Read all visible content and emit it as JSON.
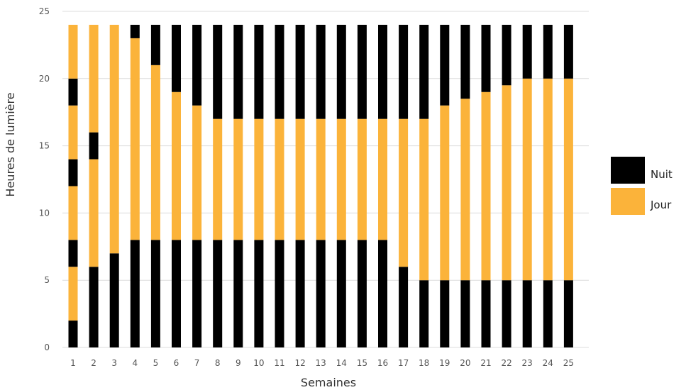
{
  "chart_data": {
    "type": "bar",
    "stacked": true,
    "title": "",
    "xlabel": "Semaines",
    "ylabel": "Heures de lumière",
    "ylim": [
      0,
      25
    ],
    "yticks": [
      0,
      5,
      10,
      15,
      20,
      25
    ],
    "grid": true,
    "legend_position": "right",
    "categories": [
      "1",
      "2",
      "3",
      "4",
      "5",
      "6",
      "7",
      "8",
      "9",
      "10",
      "11",
      "12",
      "13",
      "14",
      "15",
      "16",
      "17",
      "18",
      "19",
      "20",
      "21",
      "22",
      "23",
      "24",
      "25"
    ],
    "legend": [
      {
        "name": "Nuit",
        "color": "#000000"
      },
      {
        "name": "Jour",
        "color": "#FBB33A"
      }
    ],
    "segments_note_units": "hours, bottom to top, each bar sums to 24",
    "bars": [
      [
        [
          "Nuit",
          2
        ],
        [
          "Jour",
          4
        ],
        [
          "Nuit",
          2
        ],
        [
          "Jour",
          4
        ],
        [
          "Nuit",
          2
        ],
        [
          "Jour",
          4
        ],
        [
          "Nuit",
          2
        ],
        [
          "Jour",
          4
        ]
      ],
      [
        [
          "Nuit",
          6
        ],
        [
          "Jour",
          8
        ],
        [
          "Nuit",
          2
        ],
        [
          "Jour",
          8
        ]
      ],
      [
        [
          "Nuit",
          7
        ],
        [
          "Jour",
          17
        ]
      ],
      [
        [
          "Nuit",
          8
        ],
        [
          "Jour",
          15
        ],
        [
          "Nuit",
          1
        ]
      ],
      [
        [
          "Nuit",
          8
        ],
        [
          "Jour",
          13
        ],
        [
          "Nuit",
          3
        ]
      ],
      [
        [
          "Nuit",
          8
        ],
        [
          "Jour",
          11
        ],
        [
          "Nuit",
          5
        ]
      ],
      [
        [
          "Nuit",
          8
        ],
        [
          "Jour",
          10
        ],
        [
          "Nuit",
          6
        ]
      ],
      [
        [
          "Nuit",
          8
        ],
        [
          "Jour",
          9
        ],
        [
          "Nuit",
          7
        ]
      ],
      [
        [
          "Nuit",
          8
        ],
        [
          "Jour",
          9
        ],
        [
          "Nuit",
          7
        ]
      ],
      [
        [
          "Nuit",
          8
        ],
        [
          "Jour",
          9
        ],
        [
          "Nuit",
          7
        ]
      ],
      [
        [
          "Nuit",
          8
        ],
        [
          "Jour",
          9
        ],
        [
          "Nuit",
          7
        ]
      ],
      [
        [
          "Nuit",
          8
        ],
        [
          "Jour",
          9
        ],
        [
          "Nuit",
          7
        ]
      ],
      [
        [
          "Nuit",
          8
        ],
        [
          "Jour",
          9
        ],
        [
          "Nuit",
          7
        ]
      ],
      [
        [
          "Nuit",
          8
        ],
        [
          "Jour",
          9
        ],
        [
          "Nuit",
          7
        ]
      ],
      [
        [
          "Nuit",
          8
        ],
        [
          "Jour",
          9
        ],
        [
          "Nuit",
          7
        ]
      ],
      [
        [
          "Nuit",
          8
        ],
        [
          "Jour",
          9
        ],
        [
          "Nuit",
          7
        ]
      ],
      [
        [
          "Nuit",
          6
        ],
        [
          "Jour",
          11
        ],
        [
          "Nuit",
          7
        ]
      ],
      [
        [
          "Nuit",
          5
        ],
        [
          "Jour",
          12
        ],
        [
          "Nuit",
          7
        ]
      ],
      [
        [
          "Nuit",
          5
        ],
        [
          "Jour",
          13
        ],
        [
          "Nuit",
          6
        ]
      ],
      [
        [
          "Nuit",
          5
        ],
        [
          "Jour",
          13.5
        ],
        [
          "Nuit",
          5.5
        ]
      ],
      [
        [
          "Nuit",
          5
        ],
        [
          "Jour",
          14
        ],
        [
          "Nuit",
          5
        ]
      ],
      [
        [
          "Nuit",
          5
        ],
        [
          "Jour",
          14.5
        ],
        [
          "Nuit",
          4.5
        ]
      ],
      [
        [
          "Nuit",
          5
        ],
        [
          "Jour",
          15
        ],
        [
          "Nuit",
          4
        ]
      ],
      [
        [
          "Nuit",
          5
        ],
        [
          "Jour",
          15
        ],
        [
          "Nuit",
          4
        ]
      ],
      [
        [
          "Nuit",
          5
        ],
        [
          "Jour",
          15
        ],
        [
          "Nuit",
          4
        ]
      ]
    ]
  }
}
